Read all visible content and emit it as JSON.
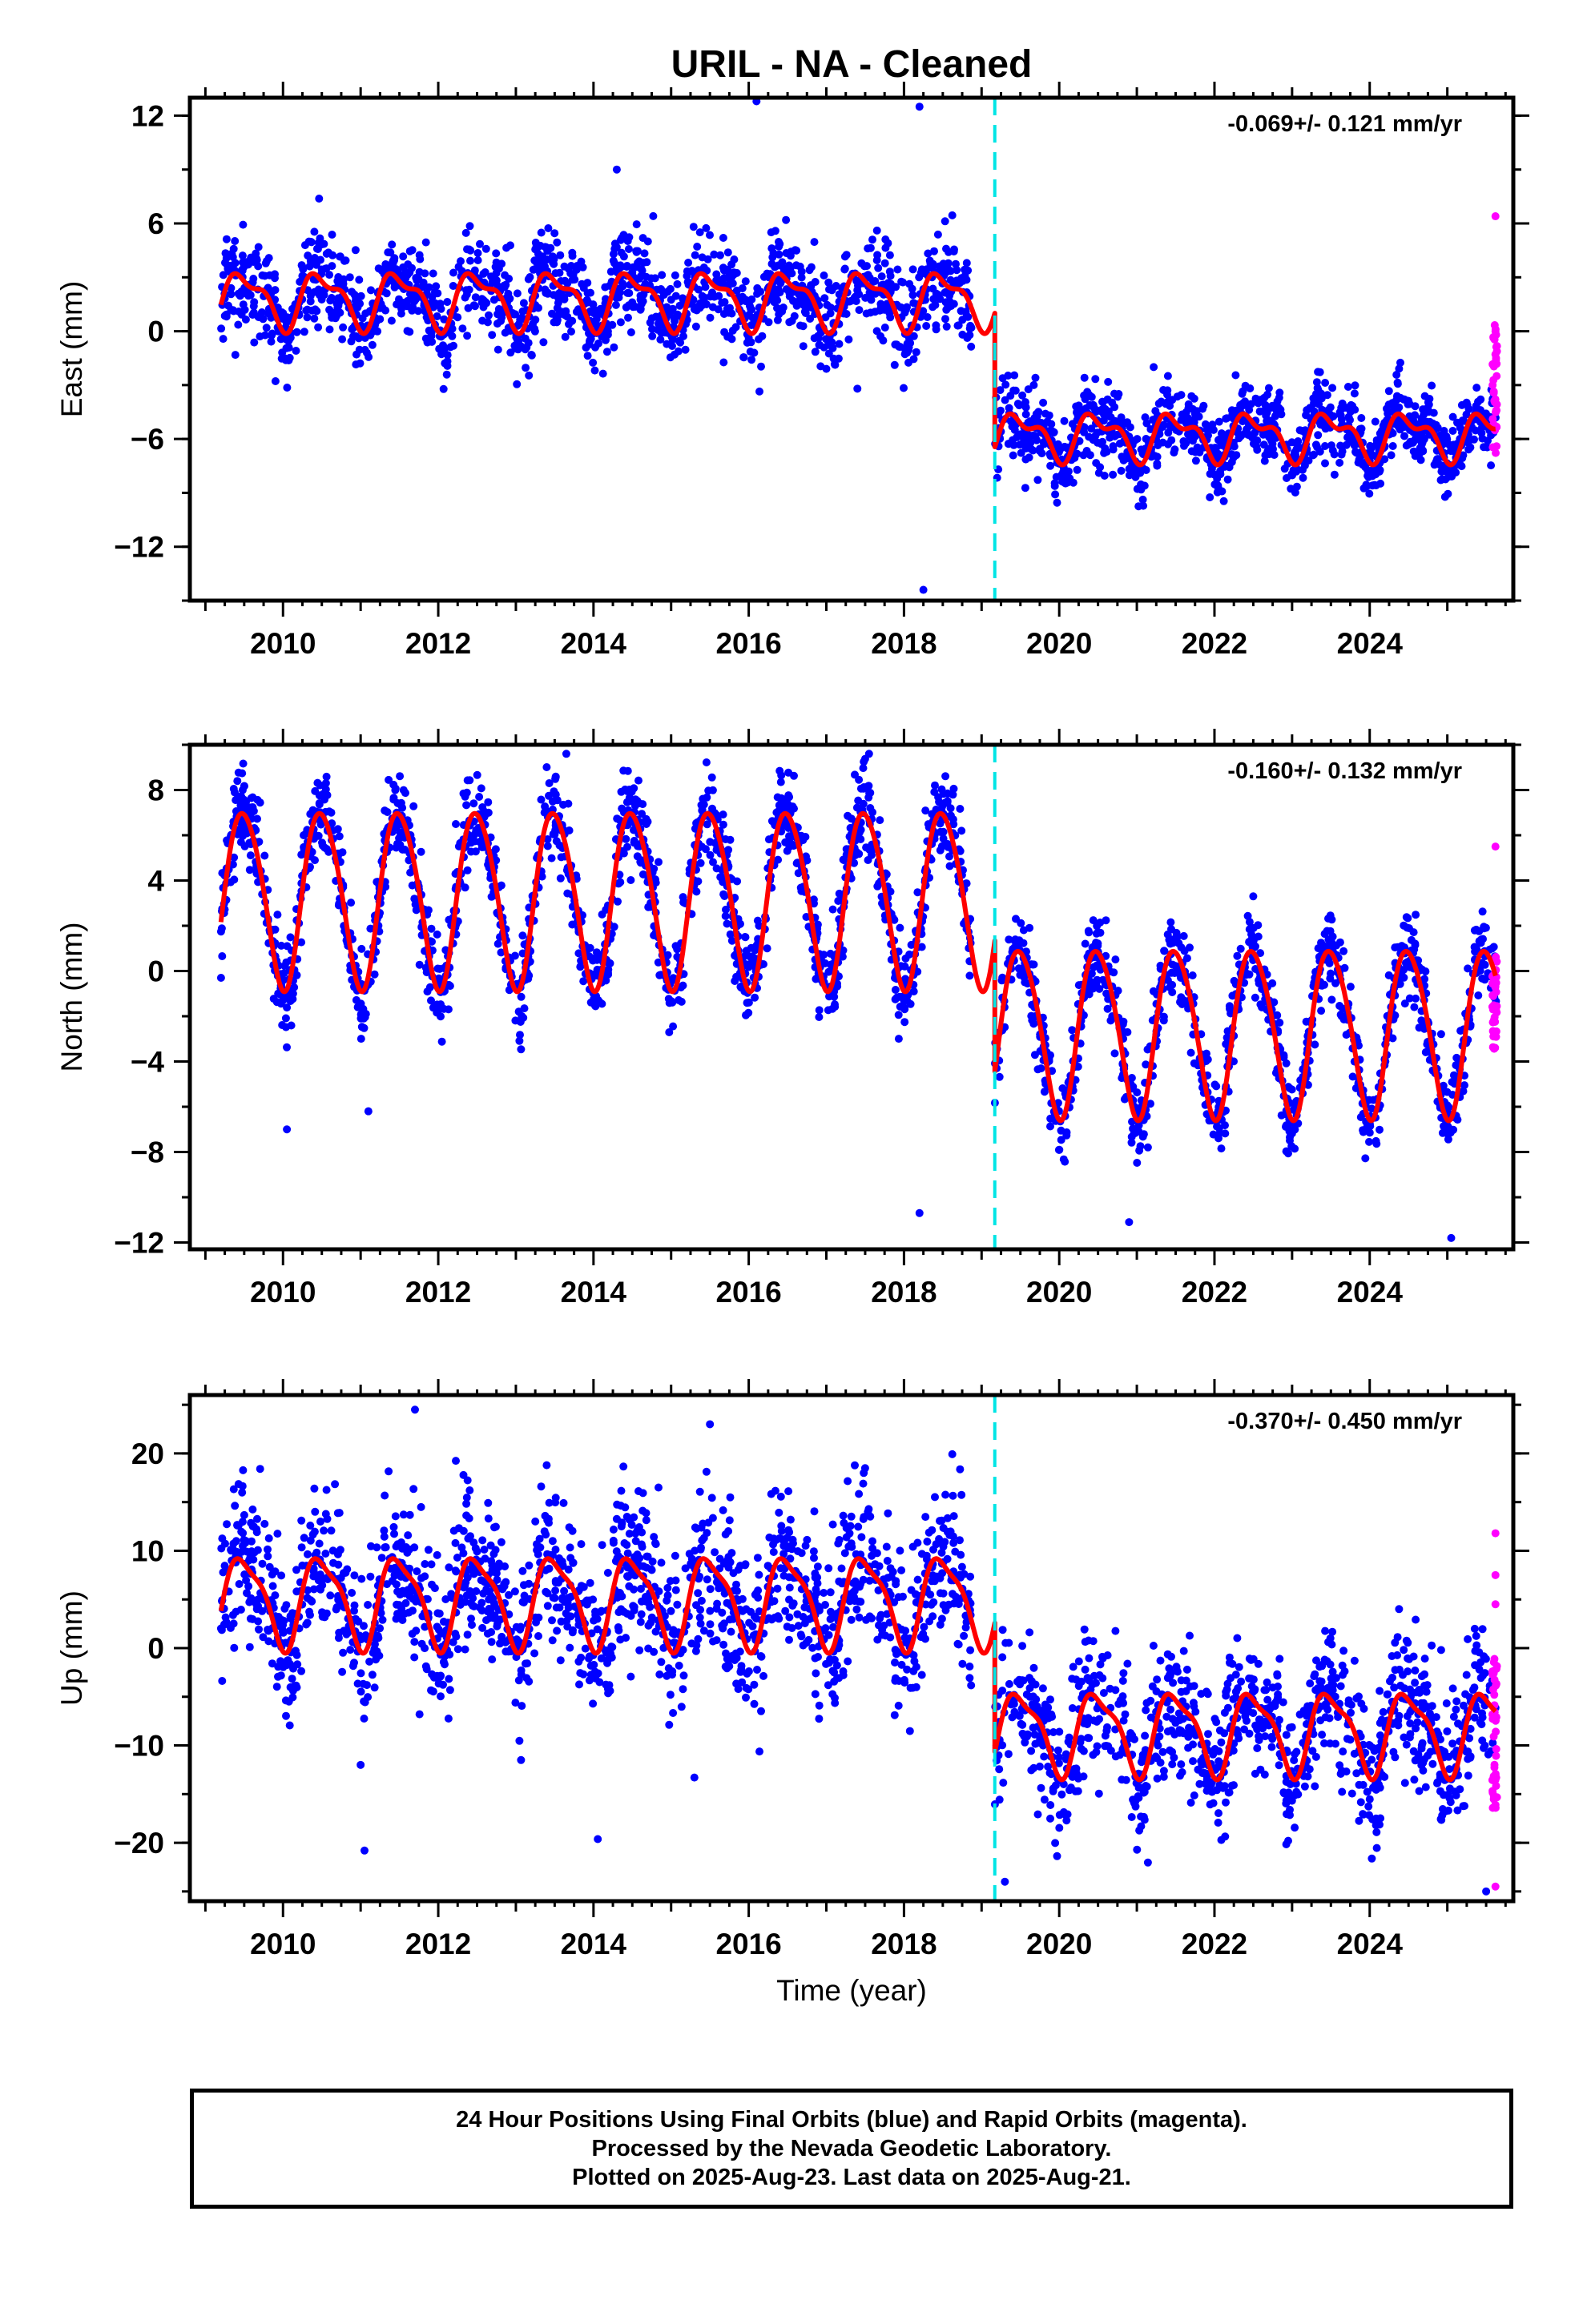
{
  "title": "URIL  - NA - Cleaned",
  "xlabel": "Time (year)",
  "footer": {
    "line1": "24 Hour Positions Using Final Orbits (blue) and Rapid Orbits (magenta).",
    "line2": "Processed by the Nevada Geodetic Laboratory.",
    "line3": "Plotted on 2025-Aug-23. Last data on 2025-Aug-21."
  },
  "colors": {
    "final_orbits": "#0000ff",
    "rapid_orbits": "#ff00ff",
    "model": "#ff0000",
    "equipment_change": "#00e5e5",
    "frame": "#000000"
  },
  "chart_data": [
    {
      "type": "scatter",
      "ylabel": "East (mm)",
      "rate": "-0.069+/- 0.121 mm/yr",
      "xlim": [
        2008.8,
        2025.85
      ],
      "ylim": [
        -15,
        13
      ],
      "yticks": [
        12,
        6,
        0,
        -6,
        -12
      ],
      "xticks": [
        2010,
        2012,
        2014,
        2016,
        2018,
        2020,
        2022,
        2024
      ],
      "xtick_labels": [
        "2010",
        "2012",
        "2014",
        "2016",
        "2018",
        "2020",
        "2022",
        "2024"
      ],
      "break_epoch": 2019.17,
      "data_start": 2009.2,
      "data_end": 2025.63,
      "model": {
        "before": {
          "offset": 1.8,
          "annual_amp": 1.4,
          "semiannual_amp": 0.6
        },
        "after": {
          "offset": -5.8,
          "annual_amp": 1.1,
          "semiannual_amp": 0.6
        }
      },
      "scatter_sd": {
        "before": 1.3,
        "after": 1.0
      },
      "outliers": [
        [
          2016.1,
          12.8
        ],
        [
          2018.2,
          12.5
        ],
        [
          2014.3,
          9.0
        ],
        [
          2018.25,
          -14.4
        ],
        [
          2017.4,
          -3.2
        ]
      ],
      "rapid_range": [
        -6.8,
        0.5
      ],
      "rapid_outliers": [
        6.4,
        0.0
      ]
    },
    {
      "type": "scatter",
      "ylabel": "North (mm)",
      "rate": "-0.160+/- 0.132 mm/yr",
      "xlim": [
        2008.8,
        2025.85
      ],
      "ylim": [
        -12.3,
        10
      ],
      "yticks": [
        8,
        4,
        0,
        -4,
        -8,
        -12
      ],
      "xticks": [
        2010,
        2012,
        2014,
        2016,
        2018,
        2020,
        2022,
        2024
      ],
      "xtick_labels": [
        "2010",
        "2012",
        "2014",
        "2016",
        "2018",
        "2020",
        "2022",
        "2024"
      ],
      "break_epoch": 2019.17,
      "data_start": 2009.2,
      "data_end": 2025.63,
      "model": {
        "before": {
          "offset": 3.3,
          "annual_amp": 3.9,
          "semiannual_amp": 0.4
        },
        "after": {
          "offset": -2.6,
          "annual_amp": 3.7,
          "semiannual_amp": 0.4
        }
      },
      "scatter_sd": {
        "before": 1.0,
        "after": 0.9
      },
      "outliers": [
        [
          2010.05,
          -7.0
        ],
        [
          2011.1,
          -6.2
        ],
        [
          2013.65,
          9.6
        ],
        [
          2017.55,
          9.6
        ],
        [
          2018.2,
          -10.7
        ],
        [
          2020.9,
          -11.1
        ],
        [
          2025.05,
          -11.8
        ]
      ],
      "rapid_range": [
        -3.5,
        0.8
      ],
      "rapid_outliers": [
        5.5
      ]
    },
    {
      "type": "scatter",
      "ylabel": "Up (mm)",
      "rate": "-0.370+/- 0.450 mm/yr",
      "xlim": [
        2008.8,
        2025.85
      ],
      "ylim": [
        -26,
        26
      ],
      "yticks": [
        20,
        10,
        0,
        -10,
        -20
      ],
      "xticks": [
        2010,
        2012,
        2014,
        2016,
        2018,
        2020,
        2022,
        2024
      ],
      "xtick_labels": [
        "2010",
        "2012",
        "2014",
        "2016",
        "2018",
        "2020",
        "2022",
        "2024"
      ],
      "break_epoch": 2019.17,
      "data_start": 2009.2,
      "data_end": 2025.63,
      "model": {
        "before": {
          "offset": 5.0,
          "annual_amp": 4.5,
          "semiannual_amp": 1.2
        },
        "after": {
          "offset": -8.5,
          "annual_amp": 4.0,
          "semiannual_amp": 1.2
        }
      },
      "scatter_sd": {
        "before": 4.0,
        "after": 3.5
      },
      "outliers": [
        [
          2011.7,
          24.5
        ],
        [
          2015.5,
          23.0
        ],
        [
          2011.05,
          -20.8
        ],
        [
          2011.0,
          -12.0
        ],
        [
          2015.3,
          -13.3
        ],
        [
          2019.3,
          -24.0
        ],
        [
          2025.5,
          -25.0
        ]
      ],
      "rapid_range": [
        -17,
        0
      ],
      "rapid_outliers": [
        11.8,
        7.5,
        4.5,
        -24.5
      ]
    }
  ]
}
